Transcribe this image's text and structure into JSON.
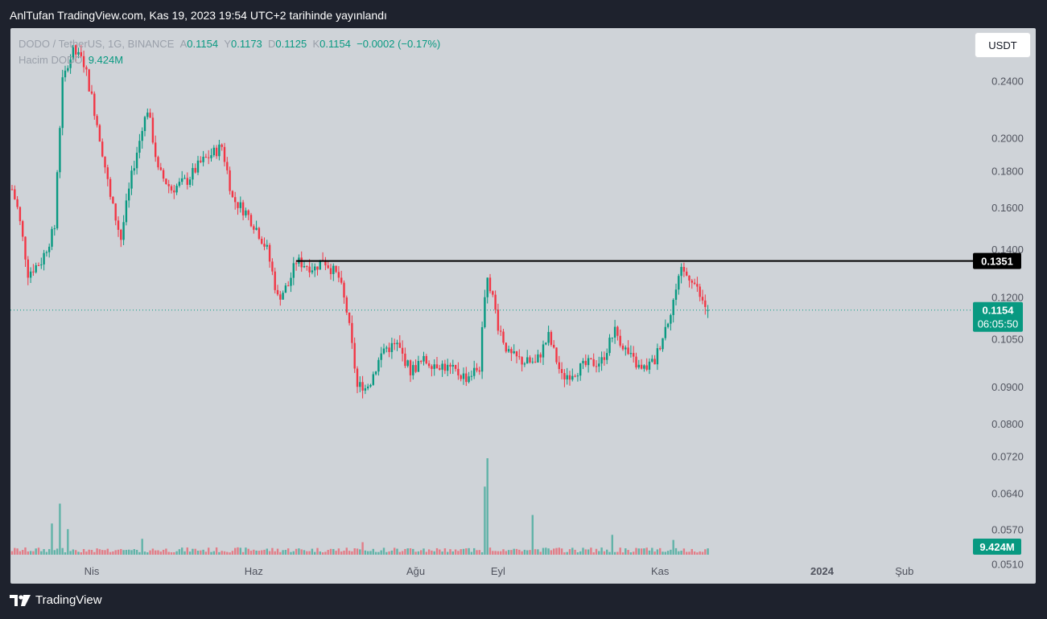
{
  "header": {
    "publish_text": "AnlTufan TradingView.com, Kas 19, 2023 19:54 UTC+2 tarihinde yayınlandı"
  },
  "legend": {
    "symbol": "DODO / TetherUS, 1G, BINANCE",
    "open_label": "A",
    "open": "0.1154",
    "high_label": "Y",
    "high": "0.1173",
    "low_label": "D",
    "low": "0.1125",
    "close_label": "K",
    "close": "0.1154",
    "change": "−0.0002 (−0.17%)",
    "volume_label": "Hacim DODO",
    "volume": "9.424M"
  },
  "currency_button": "USDT",
  "footer": {
    "brand": "TradingView"
  },
  "colors": {
    "up": "#089981",
    "down": "#f23645",
    "background": "#cfd3d8",
    "page": "#1e222d",
    "resistance_line": "#000000"
  },
  "chart_data": {
    "type": "candlestick",
    "symbol": "DODO/USDT",
    "interval": "1D",
    "y_scale": "log",
    "ylim": [
      0.048,
      0.285
    ],
    "y_ticks": [
      "0.2400",
      "0.2000",
      "0.1800",
      "0.1600",
      "0.1400",
      "0.1200",
      "0.1050",
      "0.0900",
      "0.0800",
      "0.0720",
      "0.0640",
      "0.0570",
      "0.0510"
    ],
    "x_tick_labels": [
      "Nis",
      "Haz",
      "Ağu",
      "Eyl",
      "Kas",
      "2024",
      "Şub"
    ],
    "resistance_level": "0.1351",
    "last_price": "0.1154",
    "countdown": "06:05:50",
    "last_volume": "9.424M",
    "price_path": [
      [
        "2023-03-02",
        0.17
      ],
      [
        "2023-03-04",
        0.16
      ],
      [
        "2023-03-08",
        0.13
      ],
      [
        "2023-03-13",
        0.135
      ],
      [
        "2023-03-18",
        0.15
      ],
      [
        "2023-03-21",
        0.24
      ],
      [
        "2023-03-25",
        0.265
      ],
      [
        "2023-03-29",
        0.255
      ],
      [
        "2023-04-03",
        0.21
      ],
      [
        "2023-04-08",
        0.165
      ],
      [
        "2023-04-12",
        0.145
      ],
      [
        "2023-04-17",
        0.185
      ],
      [
        "2023-04-22",
        0.22
      ],
      [
        "2023-04-26",
        0.18
      ],
      [
        "2023-05-01",
        0.17
      ],
      [
        "2023-05-07",
        0.175
      ],
      [
        "2023-05-12",
        0.185
      ],
      [
        "2023-05-16",
        0.19
      ],
      [
        "2023-05-20",
        0.195
      ],
      [
        "2023-05-24",
        0.165
      ],
      [
        "2023-05-29",
        0.158
      ],
      [
        "2023-06-02",
        0.15
      ],
      [
        "2023-06-06",
        0.14
      ],
      [
        "2023-06-10",
        0.12
      ],
      [
        "2023-06-14",
        0.125
      ],
      [
        "2023-06-17",
        0.135
      ],
      [
        "2023-06-24",
        0.132
      ],
      [
        "2023-06-27",
        0.136
      ],
      [
        "2023-07-03",
        0.128
      ],
      [
        "2023-07-06",
        0.115
      ],
      [
        "2023-07-10",
        0.09
      ],
      [
        "2023-07-15",
        0.092
      ],
      [
        "2023-07-20",
        0.102
      ],
      [
        "2023-07-25",
        0.103
      ],
      [
        "2023-07-30",
        0.095
      ],
      [
        "2023-08-04",
        0.098
      ],
      [
        "2023-08-10",
        0.097
      ],
      [
        "2023-08-15",
        0.095
      ],
      [
        "2023-08-20",
        0.093
      ],
      [
        "2023-08-25",
        0.096
      ],
      [
        "2023-08-28",
        0.13
      ],
      [
        "2023-09-01",
        0.11
      ],
      [
        "2023-09-05",
        0.1
      ],
      [
        "2023-09-10",
        0.098
      ],
      [
        "2023-09-15",
        0.097
      ],
      [
        "2023-09-20",
        0.106
      ],
      [
        "2023-09-25",
        0.093
      ],
      [
        "2023-09-30",
        0.095
      ],
      [
        "2023-10-05",
        0.097
      ],
      [
        "2023-10-10",
        0.098
      ],
      [
        "2023-10-15",
        0.108
      ],
      [
        "2023-10-20",
        0.1
      ],
      [
        "2023-10-25",
        0.095
      ],
      [
        "2023-10-30",
        0.098
      ],
      [
        "2023-11-04",
        0.112
      ],
      [
        "2023-11-09",
        0.13
      ],
      [
        "2023-11-13",
        0.128
      ],
      [
        "2023-11-17",
        0.118
      ],
      [
        "2023-11-19",
        0.1154
      ]
    ],
    "volume_spikes": [
      [
        "2023-03-17",
        5.5
      ],
      [
        "2023-03-20",
        9.0
      ],
      [
        "2023-03-23",
        4.5
      ],
      [
        "2023-04-20",
        2.8
      ],
      [
        "2023-07-12",
        2.2
      ],
      [
        "2023-08-27",
        12.0
      ],
      [
        "2023-08-28",
        17.0
      ],
      [
        "2023-09-14",
        7.0
      ],
      [
        "2023-10-14",
        3.5
      ],
      [
        "2023-11-06",
        2.6
      ]
    ]
  }
}
